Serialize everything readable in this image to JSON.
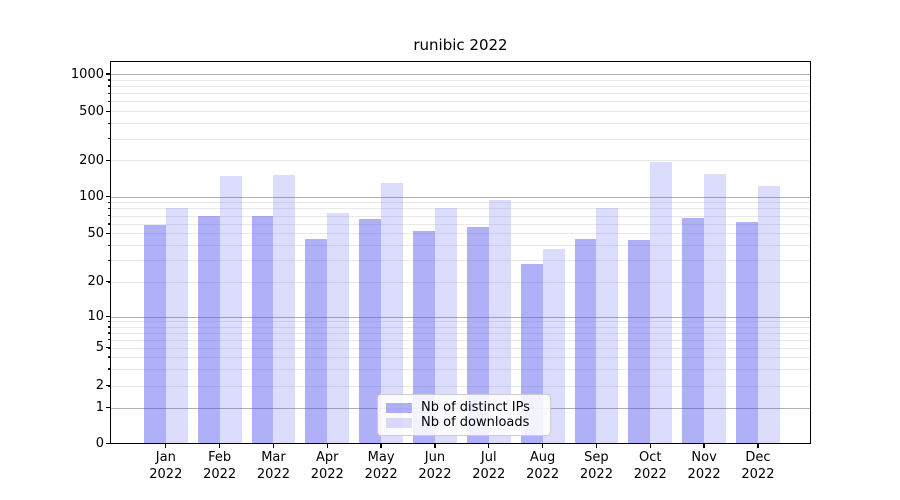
{
  "chart_data": {
    "type": "bar",
    "title": "runibic 2022",
    "categories": [
      "Jan",
      "Feb",
      "Mar",
      "Apr",
      "May",
      "Jun",
      "Jul",
      "Aug",
      "Sep",
      "Oct",
      "Nov",
      "Dec"
    ],
    "x_year_label": "2022",
    "series": [
      {
        "name": "Nb of distinct IPs",
        "color": "rgba(80,80,240,0.45)",
        "values": [
          58,
          70,
          70,
          45,
          66,
          52,
          56,
          28,
          45,
          44,
          67,
          62
        ]
      },
      {
        "name": "Nb of downloads",
        "color": "rgba(80,80,240,0.20)",
        "values": [
          81,
          148,
          152,
          74,
          130,
          81,
          94,
          37,
          81,
          192,
          155,
          122
        ]
      }
    ],
    "yticks": [
      "0",
      "1",
      "2",
      "5",
      "10",
      "20",
      "50",
      "100",
      "200",
      "500",
      "1000"
    ],
    "scale": "symlog",
    "ylim": [
      0,
      1400
    ],
    "grid": "horizontal major and minor gridlines",
    "legend_position": "lower center"
  }
}
